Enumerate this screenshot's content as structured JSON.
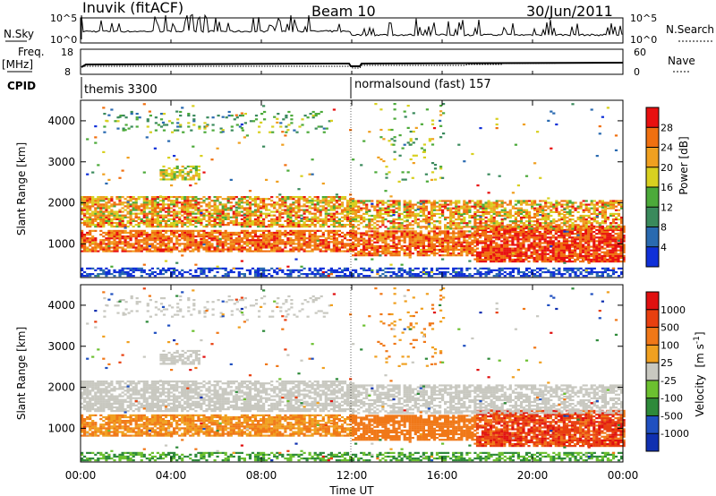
{
  "header": {
    "station": "Inuvik (fitACF)",
    "beam": "Beam 10",
    "date": "30/Jun/2011"
  },
  "noise_panel": {
    "left_label": "N.Sky",
    "right_label": "N.Search",
    "ticks_left": [
      "10^5",
      "10^0"
    ],
    "ticks_right": [
      "10^5",
      "10^0"
    ]
  },
  "freq_panel": {
    "left_label": "Freq.",
    "left_unit": "[MHz]",
    "right_label": "Nave",
    "ticks_left": [
      "18",
      "8"
    ],
    "ticks_right": [
      "60",
      "0"
    ]
  },
  "cpid_panel": {
    "label": "CPID",
    "segments": [
      {
        "name": "themis 3300",
        "start_hour": 0
      },
      {
        "name": "normalsound (fast) 157",
        "start_hour": 12
      }
    ]
  },
  "time_axis": {
    "label": "Time UT",
    "ticks": [
      "00:00",
      "04:00",
      "08:00",
      "12:00",
      "16:00",
      "20:00",
      "00:00"
    ]
  },
  "chart_data": [
    {
      "type": "heatmap",
      "title": "Power",
      "xlabel": "Time UT",
      "ylabel": "Slant Range [km]",
      "ylim": [
        180,
        4500
      ],
      "yticks": [
        "1000",
        "2000",
        "3000",
        "4000"
      ],
      "colorbar": {
        "label": "Power [dB]",
        "ticks": [
          "4",
          "8",
          "12",
          "16",
          "20",
          "24",
          "28"
        ],
        "range": [
          0,
          32
        ],
        "colors": [
          "#1030d8",
          "#2a6ab0",
          "#3a8a5c",
          "#4caa3a",
          "#d8d020",
          "#f0a020",
          "#f07010",
          "#e81010"
        ]
      }
    },
    {
      "type": "heatmap",
      "title": "Velocity",
      "xlabel": "Time UT",
      "ylabel": "Slant Range [km]",
      "ylim": [
        180,
        4500
      ],
      "yticks": [
        "1000",
        "2000",
        "3000",
        "4000"
      ],
      "colorbar": {
        "label": "Velocity",
        "unit_main": "[m s",
        "unit_exp": "-1",
        "unit_end": "]",
        "ticks": [
          "1000",
          "500",
          "100",
          "25",
          "-25",
          "-100",
          "-500",
          "-1000"
        ],
        "colors": [
          "#1030b0",
          "#2050c0",
          "#2e8a3a",
          "#6cc030",
          "#c8c8c0",
          "#f0a020",
          "#f07818",
          "#e84010",
          "#e01010"
        ]
      }
    }
  ]
}
